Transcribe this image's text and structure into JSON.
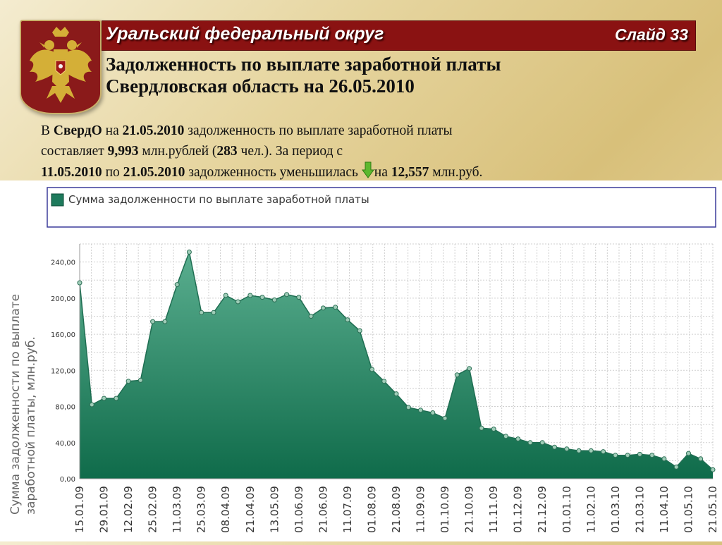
{
  "header": {
    "region": "Уральский федеральный округ",
    "slide": "Слайд 33"
  },
  "title": {
    "line1": "Задолженность по выплате заработной платы",
    "line2": "Свердловская область на 26.05.2010"
  },
  "summary": {
    "t1": "В ",
    "region_short": "СвердО",
    "t2": " на ",
    "date1": "21.05.2010",
    "t3": " задолженность по выплате заработной платы",
    "t4": "составляет ",
    "amount": "9,993",
    "t5": " млн.рублей (",
    "people": "283",
    "t6": " чел.). За период с",
    "period_from": "11.05.2010",
    "t7": " по ",
    "period_to": "21.05.2010",
    "t8": " задолженность уменьшилась ",
    "t9": "на ",
    "decrease": "12,557",
    "t10": " млн.руб."
  },
  "colors": {
    "header_bar": "#8a1212",
    "area_fill": "#2a8a6a",
    "line": "#1f6e52",
    "legend_swatch": "#1e7a5c"
  },
  "chart_data": {
    "type": "area",
    "legend": [
      "Сумма задолженности по выплате заработной платы"
    ],
    "ylabel": "Сумма задолженности по выплате заработной платы, млн.руб.",
    "xlabel": "",
    "ylim": [
      0,
      260
    ],
    "yticks": [
      "0,00",
      "40,00",
      "80,00",
      "120,00",
      "160,00",
      "200,00",
      "240,00"
    ],
    "ytick_values": [
      0,
      40,
      80,
      120,
      160,
      200,
      240
    ],
    "xtick_labels": [
      "15.01.09",
      "29.01.09",
      "12.02.09",
      "25.02.09",
      "11.03.09",
      "25.03.09",
      "08.04.09",
      "21.04.09",
      "13.05.09",
      "01.06.09",
      "21.06.09",
      "11.07.09",
      "01.08.09",
      "21.08.09",
      "11.09.09",
      "01.10.09",
      "21.10.09",
      "11.11.09",
      "01.12.09",
      "21.12.09",
      "01.01.10",
      "11.02.10",
      "01.03.10",
      "21.03.10",
      "11.04.10",
      "01.05.10",
      "21.05.10"
    ],
    "grid": true,
    "series": [
      {
        "name": "Сумма задолженности по выплате заработной платы",
        "values": [
          217,
          82,
          89,
          89,
          108,
          109,
          174,
          174,
          215,
          251,
          184,
          184,
          203,
          196,
          203,
          201,
          198,
          204,
          201,
          180,
          189,
          190,
          176,
          164,
          121,
          108,
          94,
          79,
          76,
          73,
          67,
          115,
          122,
          56,
          55,
          47,
          44,
          40,
          40,
          35,
          33,
          31,
          31,
          30,
          26,
          26,
          27,
          26,
          22,
          13,
          28,
          22,
          10
        ]
      }
    ]
  }
}
